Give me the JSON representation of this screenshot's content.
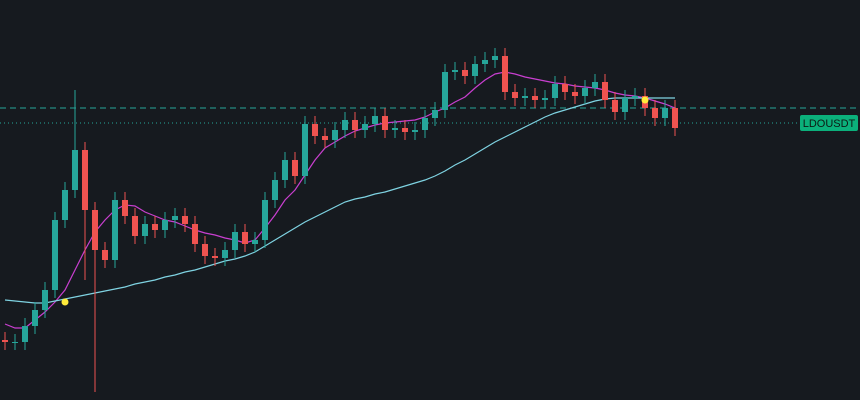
{
  "chart_data": {
    "type": "candlestick",
    "ylim": [
      0,
      100
    ],
    "up_color": "#26a69a",
    "down_color": "#ef5350",
    "open": [
      15,
      14.5,
      14.5,
      18.5,
      22.5,
      27.5,
      45,
      52.5,
      62.5,
      47.5,
      37.5,
      35,
      50,
      46,
      41,
      44,
      42.5,
      45,
      46,
      44,
      39,
      36,
      35.5,
      37.5,
      42,
      39,
      40,
      50,
      55,
      60,
      56,
      69,
      66,
      65,
      67.5,
      70,
      67.5,
      69,
      71,
      67.5,
      68,
      67,
      67.5,
      70.5,
      72.5,
      82,
      82.5,
      81,
      84,
      85,
      86,
      77,
      75.5,
      76,
      75,
      75.5,
      79,
      77,
      76,
      78,
      79.5,
      75,
      72,
      75.5,
      76,
      73,
      70.5,
      73
    ],
    "high": [
      17,
      16.5,
      20.5,
      24.5,
      29.5,
      47,
      54.5,
      77.5,
      64.5,
      49.5,
      39.5,
      52,
      52,
      48,
      46,
      46,
      47,
      48,
      48,
      46,
      41,
      38,
      39.5,
      44,
      44,
      42,
      52,
      57,
      62,
      62,
      71,
      71,
      68,
      69.5,
      72,
      72,
      71,
      73,
      73,
      70,
      70,
      69.5,
      72.5,
      74.5,
      84,
      84.5,
      84.5,
      86,
      87,
      88,
      88,
      79,
      78,
      78,
      77.5,
      81,
      81,
      79,
      80,
      81.5,
      81.5,
      77,
      77.5,
      78,
      78,
      75,
      75,
      75
    ],
    "low": [
      12.5,
      12.5,
      12.5,
      16.5,
      20.5,
      25.5,
      43,
      50.5,
      30,
      2,
      33,
      33,
      44,
      39,
      39,
      40.5,
      40.5,
      43,
      42,
      37,
      34,
      33.5,
      33.5,
      35.5,
      37,
      37,
      38,
      48,
      53,
      54,
      54,
      64,
      63,
      63,
      65.5,
      65.5,
      65.5,
      67,
      65.5,
      65.5,
      65,
      65,
      65.5,
      68.5,
      70.5,
      80,
      79,
      79,
      82,
      83,
      75,
      73.5,
      73.5,
      73,
      73,
      73.5,
      75,
      74,
      74,
      76,
      73,
      70,
      70,
      73.5,
      71,
      68.5,
      68.5,
      66
    ],
    "close": [
      14.5,
      14.5,
      18.5,
      22.5,
      27.5,
      45,
      52.5,
      62.5,
      47.5,
      37.5,
      35,
      50,
      46,
      41,
      44,
      42.5,
      45,
      46,
      44,
      39,
      36,
      35.5,
      37.5,
      42,
      39,
      40,
      50,
      55,
      60,
      56,
      69,
      66,
      65,
      67.5,
      70,
      67.5,
      69,
      71,
      67.5,
      68,
      67,
      67.5,
      70.5,
      72.5,
      82,
      82.5,
      81,
      84,
      85,
      86,
      77,
      75.5,
      76,
      75,
      75.5,
      79,
      77,
      76,
      78,
      79.5,
      75,
      72,
      75.5,
      76,
      73,
      70.5,
      73,
      68
    ],
    "series": [
      {
        "color": "#c93fd0",
        "values": [
          19,
          18,
          18,
          20,
          22,
          24.5,
          27.5,
          32.5,
          37.5,
          42,
          45,
          47.5,
          48.75,
          48.5,
          47,
          46,
          45,
          44.5,
          43.5,
          42.5,
          41.75,
          41.25,
          40.5,
          40,
          39.25,
          40,
          43,
          46.25,
          50,
          52.5,
          56.25,
          60,
          63,
          64.5,
          66,
          67.25,
          68,
          68.75,
          69.25,
          69.5,
          69.75,
          70,
          70.75,
          72,
          73,
          74.5,
          75.75,
          78,
          80,
          81.5,
          82,
          81.5,
          80.75,
          80.25,
          79.75,
          79.25,
          79,
          78.5,
          78.25,
          78,
          77.5,
          76.75,
          76.25,
          76,
          75.5,
          74.75,
          74,
          73
        ]
      },
      {
        "color": "#7fd3e2",
        "values": [
          25,
          24.75,
          24.5,
          24.25,
          24.25,
          24.75,
          25.25,
          25.75,
          26.25,
          26.75,
          27.25,
          27.75,
          28.25,
          29,
          29.5,
          30,
          30.75,
          31.25,
          32,
          32.5,
          33.25,
          34,
          34.75,
          35.25,
          36,
          37,
          38.5,
          40,
          41.5,
          43,
          44.5,
          45.75,
          47,
          48.25,
          49.5,
          50.25,
          50.75,
          51.5,
          52,
          52.75,
          53.5,
          54.25,
          55,
          56,
          57.25,
          58.75,
          60,
          61.5,
          63,
          64.5,
          65.75,
          67,
          68.25,
          69.5,
          70.75,
          71.75,
          72.5,
          73.25,
          74,
          74.75,
          75.25,
          75.5,
          75.5,
          75.5,
          75.5,
          75.5,
          75.5,
          75.5
        ]
      }
    ],
    "markers": {
      "color": "#ffeb3b",
      "index": [
        6,
        64
      ],
      "values": [
        24.5,
        75
      ]
    },
    "price_lines": [
      {
        "value": 73,
        "style": "dashed",
        "color": "#26a69a"
      },
      {
        "value": 69.25,
        "style": "dotted",
        "color": "#26a69a",
        "label": "LDOUSDT"
      }
    ]
  }
}
